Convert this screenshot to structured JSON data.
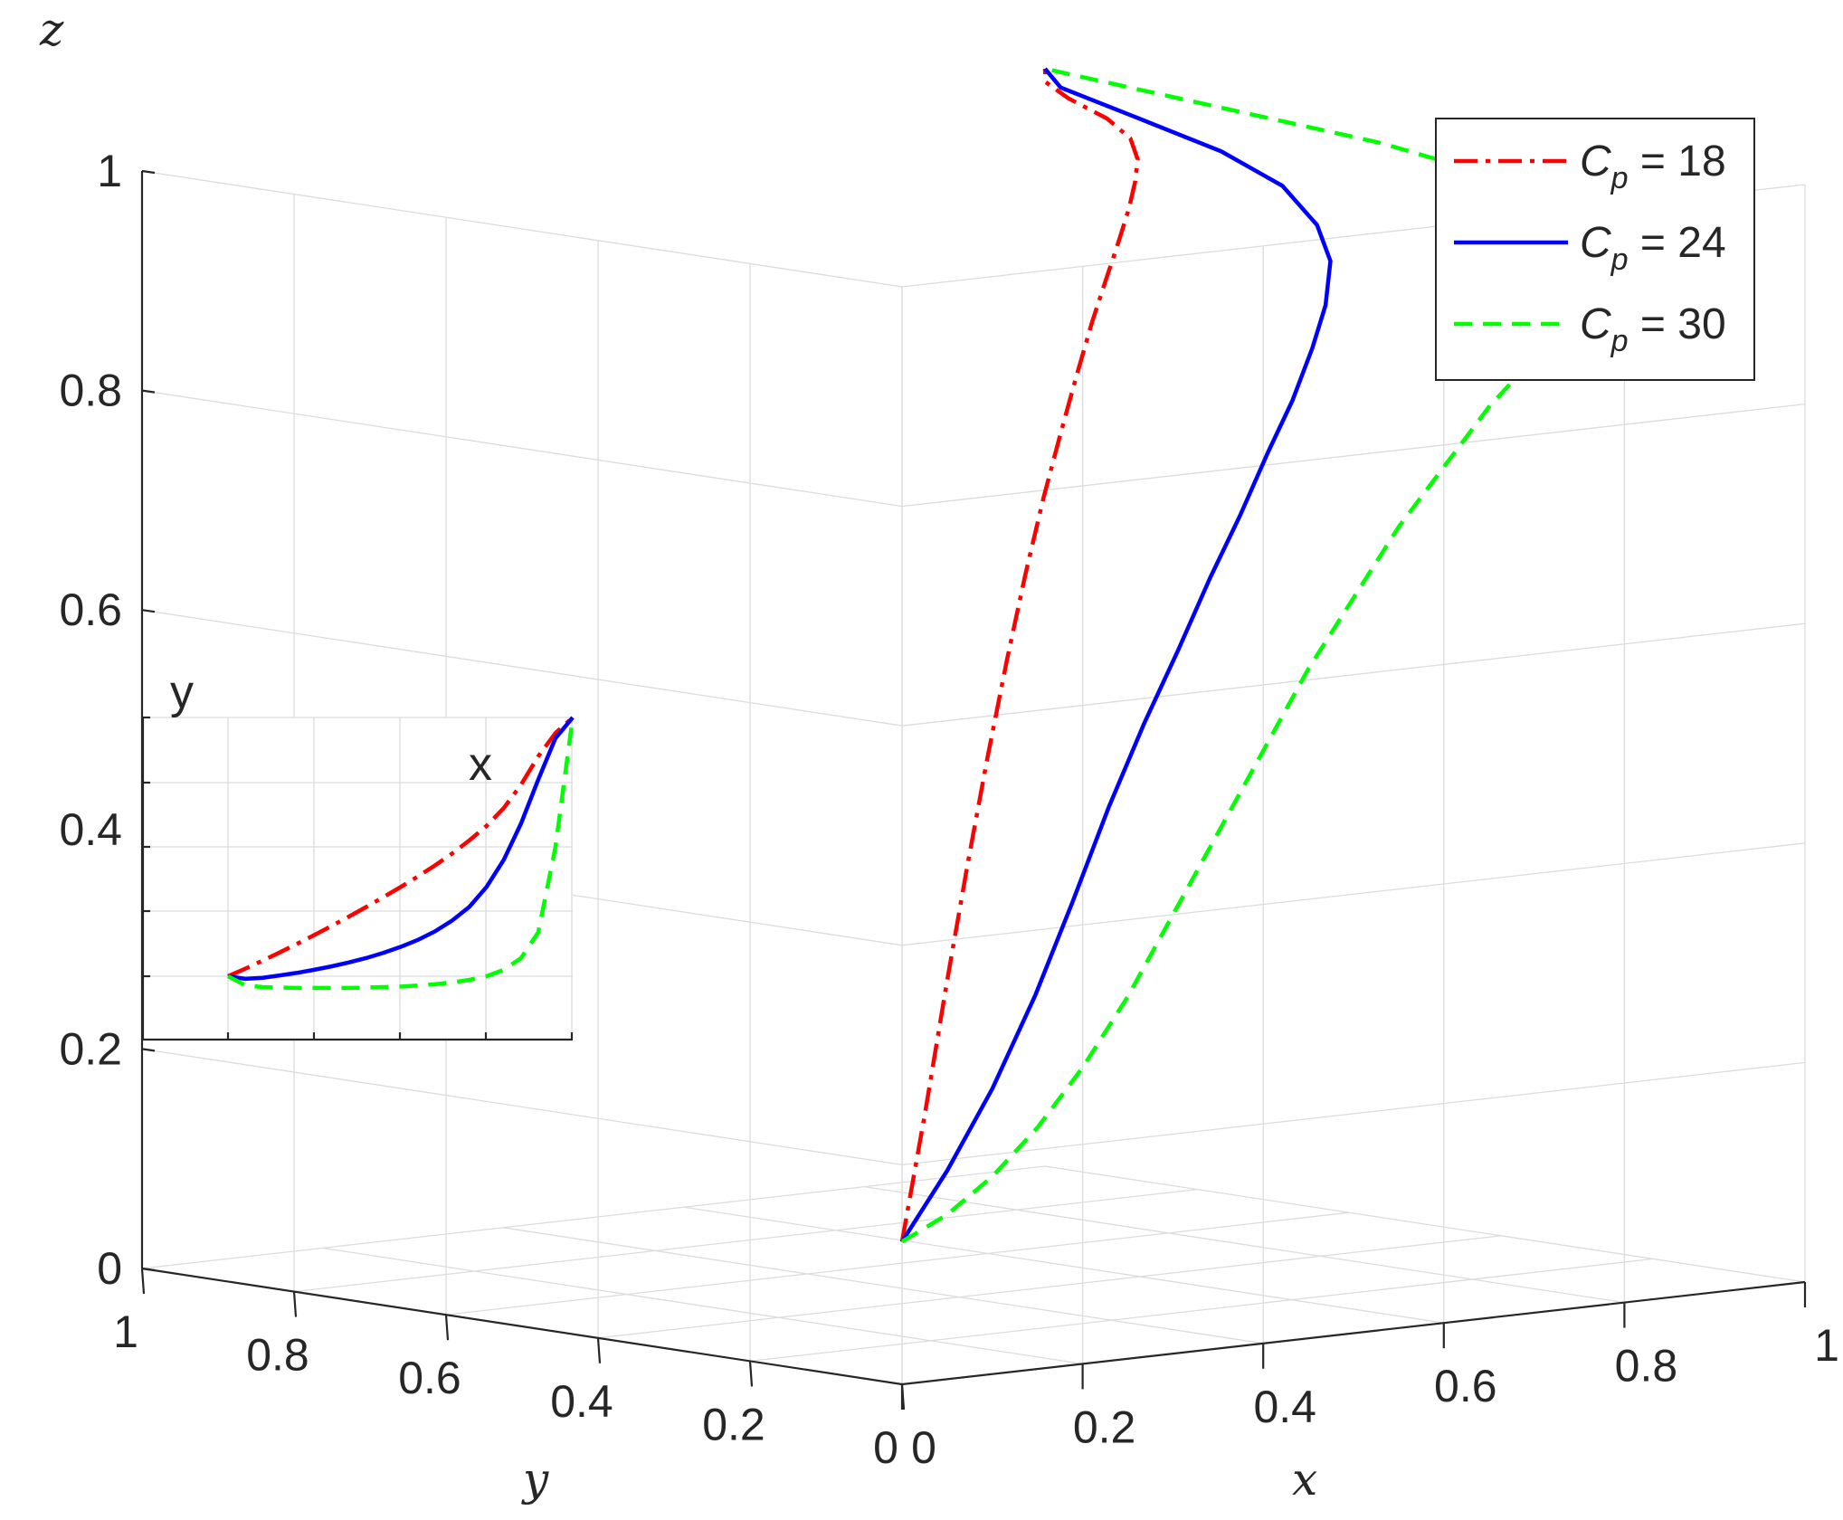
{
  "chart_data": {
    "type": "line",
    "projection": "3d",
    "axes": {
      "x": {
        "label": "x",
        "range": [
          0,
          1
        ],
        "ticks": [
          0,
          0.2,
          0.4,
          0.6,
          0.8,
          1
        ],
        "tick_labels": [
          "0",
          "0.2",
          "0.4",
          "0.6",
          "0.8",
          "1"
        ]
      },
      "y": {
        "label": "y",
        "range": [
          0,
          1
        ],
        "ticks": [
          0,
          0.2,
          0.4,
          0.6,
          0.8,
          1
        ],
        "tick_labels": [
          "0",
          "0.2",
          "0.4",
          "0.6",
          "0.8",
          "1"
        ]
      },
      "z": {
        "label": "z",
        "range": [
          0,
          1
        ],
        "ticks": [
          0,
          0.2,
          0.4,
          0.6,
          0.8,
          1
        ],
        "tick_labels": [
          "0",
          "0.2",
          "0.4",
          "0.6",
          "0.8",
          "1"
        ]
      }
    },
    "grid": true,
    "legend": {
      "position": "top-right"
    },
    "series": [
      {
        "name": "C_p = 18",
        "legend_base": "C",
        "legend_sub": "p",
        "legend_rest": " = 18",
        "color": "#ff0000",
        "line_style": "dash-dot",
        "x": [
          0.0,
          0.05,
          0.1,
          0.15,
          0.2,
          0.25,
          0.3,
          0.35,
          0.4,
          0.45,
          0.5,
          0.55,
          0.6,
          0.65,
          0.7,
          0.75,
          0.8,
          0.85,
          0.9,
          0.95,
          1.0
        ],
        "y": [
          0.0,
          0.029,
          0.06,
          0.092,
          0.125,
          0.159,
          0.194,
          0.23,
          0.267,
          0.305,
          0.344,
          0.385,
          0.428,
          0.474,
          0.525,
          0.581,
          0.65,
          0.74,
          0.85,
          0.94,
          1.0
        ],
        "z": [
          0.13,
          0.24,
          0.35,
          0.45,
          0.54,
          0.62,
          0.69,
          0.75,
          0.8,
          0.845,
          0.885,
          0.915,
          0.94,
          0.96,
          0.975,
          0.985,
          0.992,
          0.996,
          0.998,
          0.999,
          1.0
        ]
      },
      {
        "name": "C_p = 24",
        "legend_base": "C",
        "legend_sub": "p",
        "legend_rest": " = 24",
        "color": "#0000ff",
        "line_style": "solid",
        "x": [
          0.0,
          0.05,
          0.1,
          0.15,
          0.2,
          0.25,
          0.3,
          0.35,
          0.4,
          0.45,
          0.5,
          0.55,
          0.6,
          0.65,
          0.7,
          0.75,
          0.8,
          0.85,
          0.9,
          0.95,
          1.0
        ],
        "y": [
          0.0,
          -0.01,
          -0.006,
          0.003,
          0.013,
          0.025,
          0.038,
          0.053,
          0.07,
          0.09,
          0.113,
          0.14,
          0.173,
          0.215,
          0.268,
          0.345,
          0.45,
          0.59,
          0.76,
          0.92,
          1.0
        ],
        "z": [
          0.13,
          0.19,
          0.26,
          0.34,
          0.42,
          0.5,
          0.57,
          0.63,
          0.69,
          0.74,
          0.79,
          0.83,
          0.87,
          0.9,
          0.93,
          0.95,
          0.97,
          0.982,
          0.99,
          0.996,
          1.0
        ]
      },
      {
        "name": "C_p = 30",
        "legend_base": "C",
        "legend_sub": "p",
        "legend_rest": " = 30",
        "color": "#00ff00",
        "line_style": "dashed",
        "x": [
          0.0,
          0.05,
          0.1,
          0.15,
          0.2,
          0.25,
          0.3,
          0.35,
          0.4,
          0.45,
          0.5,
          0.55,
          0.6,
          0.65,
          0.7,
          0.75,
          0.8,
          0.85,
          0.9,
          0.95,
          1.0
        ],
        "y": [
          0.0,
          -0.035,
          -0.042,
          -0.044,
          -0.045,
          -0.045,
          -0.045,
          -0.045,
          -0.044,
          -0.042,
          -0.04,
          -0.036,
          -0.031,
          -0.024,
          -0.014,
          0.0,
          0.025,
          0.07,
          0.17,
          0.5,
          1.0
        ],
        "z": [
          0.13,
          0.15,
          0.18,
          0.22,
          0.27,
          0.33,
          0.4,
          0.47,
          0.54,
          0.61,
          0.67,
          0.73,
          0.78,
          0.83,
          0.87,
          0.905,
          0.935,
          0.958,
          0.975,
          0.99,
          1.0
        ]
      }
    ],
    "inset": {
      "xlabel": "x",
      "ylabel": "y"
    }
  }
}
